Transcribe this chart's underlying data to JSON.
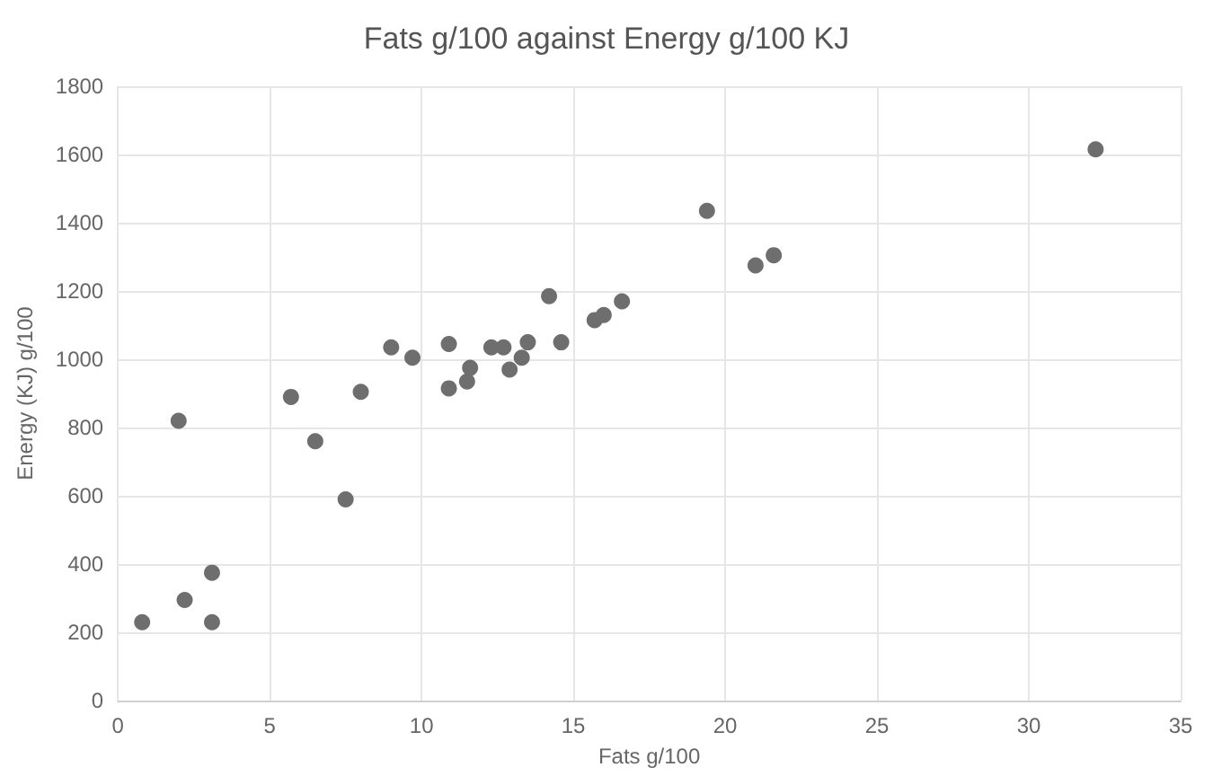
{
  "chart_data": {
    "type": "scatter",
    "title": "Fats g/100 against Energy g/100 KJ",
    "xlabel": "Fats g/100",
    "ylabel": "Energy (KJ) g/100",
    "x": [
      0.8,
      2.0,
      2.2,
      3.1,
      3.1,
      5.7,
      6.5,
      7.5,
      8.0,
      9.0,
      9.7,
      10.9,
      10.9,
      11.5,
      11.6,
      12.3,
      12.7,
      12.9,
      13.3,
      13.5,
      14.2,
      14.6,
      15.7,
      16.0,
      16.6,
      19.4,
      21.0,
      21.6,
      32.2
    ],
    "series": [
      {
        "color": "#6e6e6e",
        "values": [
          230,
          820,
          295,
          375,
          230,
          890,
          760,
          590,
          905,
          1035,
          1005,
          1045,
          915,
          935,
          975,
          1035,
          1035,
          970,
          1005,
          1050,
          1185,
          1050,
          1115,
          1130,
          1170,
          1435,
          1275,
          1305,
          1615
        ]
      }
    ],
    "xlim": [
      0,
      35
    ],
    "xticks": [
      0,
      5,
      10,
      15,
      20,
      25,
      30,
      35
    ],
    "ylim": [
      0,
      1800
    ],
    "yticks": [
      0,
      200,
      400,
      600,
      800,
      1000,
      1200,
      1400,
      1600,
      1800
    ],
    "grid": true,
    "marker": "circle"
  }
}
